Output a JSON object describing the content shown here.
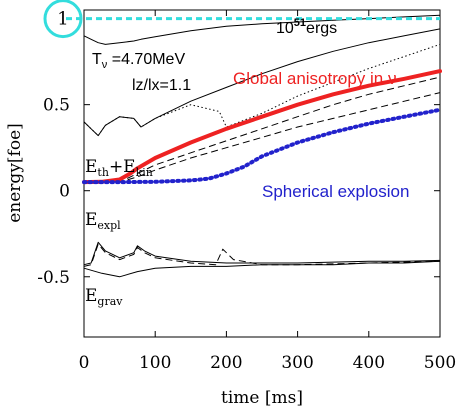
{
  "chart_data": {
    "type": "line",
    "xlabel": "time [ms]",
    "ylabel": "energy[foe]",
    "xlim": [
      0,
      500
    ],
    "ylim": [
      -0.85,
      1.05
    ],
    "x_ticks": [
      0,
      100,
      200,
      300,
      400,
      500
    ],
    "y_ticks": [
      -0.5,
      0,
      0.5
    ],
    "y_tick_labels": [
      "-0.5",
      "0",
      "0.5"
    ],
    "reference_line": {
      "y": 1.0,
      "label_base": "10",
      "label_exp": "51",
      "label_unit": "ergs",
      "marker": "1",
      "color": "#33dddd"
    },
    "params": {
      "line1_text": "T",
      "line1_sub": "ν",
      "line1_value": " =4.70MeV",
      "line2": "lz/lx=1.1"
    },
    "curve_labels": {
      "eth_main": "E",
      "eth_sub": "th",
      "eth_plus": "+E",
      "eth_sub2": "kin",
      "expl_main": "E",
      "expl_sub": "expl",
      "grav_main": "E",
      "grav_sub": "grav"
    },
    "series": [
      {
        "name": "Global anisotropy in ν",
        "color": "#ee2222",
        "style": "solid-thick",
        "x": [
          0,
          25,
          50,
          65,
          75,
          100,
          150,
          200,
          250,
          300,
          350,
          400,
          450,
          500
        ],
        "y": [
          0.05,
          0.052,
          0.065,
          0.1,
          0.13,
          0.19,
          0.28,
          0.36,
          0.43,
          0.5,
          0.56,
          0.61,
          0.65,
          0.695
        ]
      },
      {
        "name": "Spherical explosion",
        "color": "#2222cc",
        "style": "dotted-thick",
        "x": [
          0,
          50,
          100,
          150,
          175,
          200,
          225,
          250,
          275,
          300,
          350,
          400,
          450,
          500
        ],
        "y": [
          0.05,
          0.05,
          0.052,
          0.06,
          0.07,
          0.1,
          0.14,
          0.2,
          0.24,
          0.28,
          0.34,
          0.39,
          0.43,
          0.47
        ]
      },
      {
        "color": "#000000",
        "style": "thin-solid",
        "x": [
          0,
          10,
          20,
          30,
          50,
          70,
          80,
          100,
          150,
          200,
          250,
          300,
          350,
          400,
          450,
          500
        ],
        "y": [
          0.9,
          0.88,
          0.86,
          0.85,
          0.86,
          0.87,
          0.88,
          0.895,
          0.93,
          0.955,
          0.97,
          0.98,
          0.99,
          1.0,
          1.01,
          1.02
        ]
      },
      {
        "color": "#000000",
        "style": "thin-solid",
        "x": [
          0,
          10,
          20,
          30,
          50,
          70,
          80,
          100,
          150,
          200,
          250,
          300,
          350,
          400,
          450,
          500
        ],
        "y": [
          0.4,
          0.36,
          0.32,
          0.38,
          0.43,
          0.42,
          0.37,
          0.42,
          0.52,
          0.6,
          0.68,
          0.75,
          0.81,
          0.86,
          0.9,
          0.94
        ]
      },
      {
        "color": "#000000",
        "style": "thin-dotted",
        "x": [
          0,
          10,
          20,
          30,
          50,
          70,
          80,
          100,
          150,
          190,
          200,
          250,
          300,
          350,
          400,
          450,
          500
        ],
        "y": [
          0.4,
          0.36,
          0.32,
          0.38,
          0.43,
          0.42,
          0.37,
          0.42,
          0.5,
          0.46,
          0.37,
          0.45,
          0.55,
          0.63,
          0.71,
          0.78,
          0.85
        ]
      },
      {
        "color": "#000000",
        "style": "thin-dashed",
        "x": [
          0,
          50,
          75,
          100,
          150,
          200,
          250,
          300,
          350,
          400,
          450,
          500
        ],
        "y": [
          0.05,
          0.05,
          0.1,
          0.15,
          0.22,
          0.29,
          0.36,
          0.43,
          0.5,
          0.56,
          0.61,
          0.66
        ]
      },
      {
        "color": "#000000",
        "style": "thin-dashed",
        "x": [
          0,
          50,
          75,
          100,
          150,
          200,
          250,
          300,
          350,
          400,
          450,
          500
        ],
        "y": [
          0.05,
          0.05,
          0.08,
          0.12,
          0.19,
          0.25,
          0.31,
          0.37,
          0.42,
          0.47,
          0.52,
          0.57
        ]
      },
      {
        "color": "#000000",
        "style": "thin-solid",
        "x": [
          0,
          10,
          20,
          30,
          50,
          70,
          75,
          85,
          100,
          150,
          200,
          250,
          300,
          350,
          400,
          450,
          500
        ],
        "y": [
          -0.43,
          -0.42,
          -0.3,
          -0.35,
          -0.39,
          -0.36,
          -0.32,
          -0.35,
          -0.38,
          -0.41,
          -0.42,
          -0.42,
          -0.42,
          -0.415,
          -0.41,
          -0.41,
          -0.405
        ]
      },
      {
        "color": "#000000",
        "style": "thin-dashed",
        "x": [
          0,
          10,
          20,
          30,
          50,
          70,
          75,
          85,
          100,
          150,
          185,
          195,
          210,
          250,
          300,
          350,
          400,
          450,
          500
        ],
        "y": [
          -0.44,
          -0.43,
          -0.31,
          -0.36,
          -0.4,
          -0.37,
          -0.33,
          -0.36,
          -0.39,
          -0.42,
          -0.43,
          -0.34,
          -0.4,
          -0.43,
          -0.43,
          -0.425,
          -0.42,
          -0.415,
          -0.41
        ]
      },
      {
        "color": "#000000",
        "style": "thin-solid",
        "x": [
          0,
          25,
          50,
          75,
          100,
          150,
          200,
          250,
          300,
          350,
          400,
          450,
          500
        ],
        "y": [
          -0.45,
          -0.48,
          -0.5,
          -0.47,
          -0.45,
          -0.44,
          -0.44,
          -0.43,
          -0.43,
          -0.43,
          -0.42,
          -0.42,
          -0.41
        ]
      }
    ]
  }
}
